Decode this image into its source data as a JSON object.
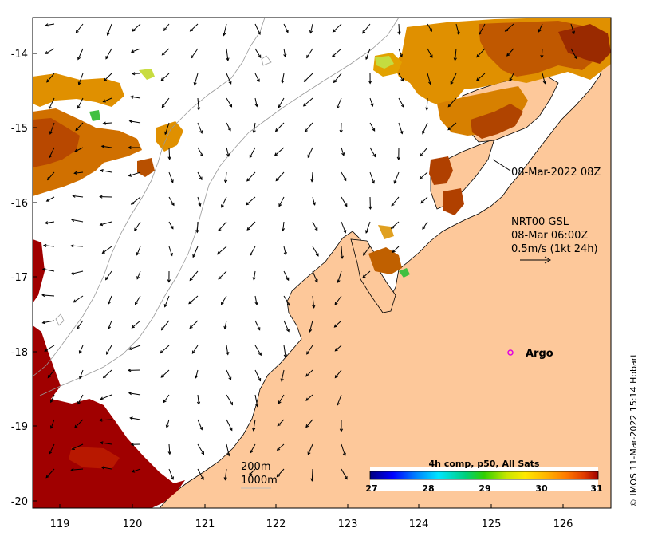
{
  "map": {
    "x_ticks": [
      "119",
      "120",
      "121",
      "122",
      "123",
      "124",
      "125",
      "126"
    ],
    "y_ticks": [
      "-14",
      "-15",
      "-16",
      "-17",
      "-18",
      "-19",
      "-20"
    ],
    "lon_range": [
      118.6,
      126.7
    ],
    "lat_range": [
      -20.1,
      -13.4
    ],
    "land_color": "#fdc89a",
    "sea_color": "#ffffff",
    "annotations": {
      "satellite_pass": "08-Mar-2022 08Z",
      "currents_source": "NRT00 GSL",
      "currents_time": "08-Mar 06:00Z",
      "currents_scale": "0.5m/s (1kt 24h)",
      "argo_label": "Argo"
    },
    "legend": {
      "contour_200": "200m",
      "contour_1000": "1000m"
    },
    "colorbar": {
      "title": "4h comp, p50, All Sats",
      "ticks": [
        "27",
        "28",
        "29",
        "30",
        "31"
      ],
      "vmin": 27,
      "vmax": 31,
      "colors": [
        "#00007f",
        "#0000ff",
        "#0080ff",
        "#00e5ff",
        "#00d07a",
        "#2fd000",
        "#c8e600",
        "#ffe800",
        "#ffb000",
        "#ff7a00",
        "#e03a00",
        "#a00000"
      ]
    },
    "credit": "© IMOS 11-Mar-2022 15:14 Hobart"
  }
}
